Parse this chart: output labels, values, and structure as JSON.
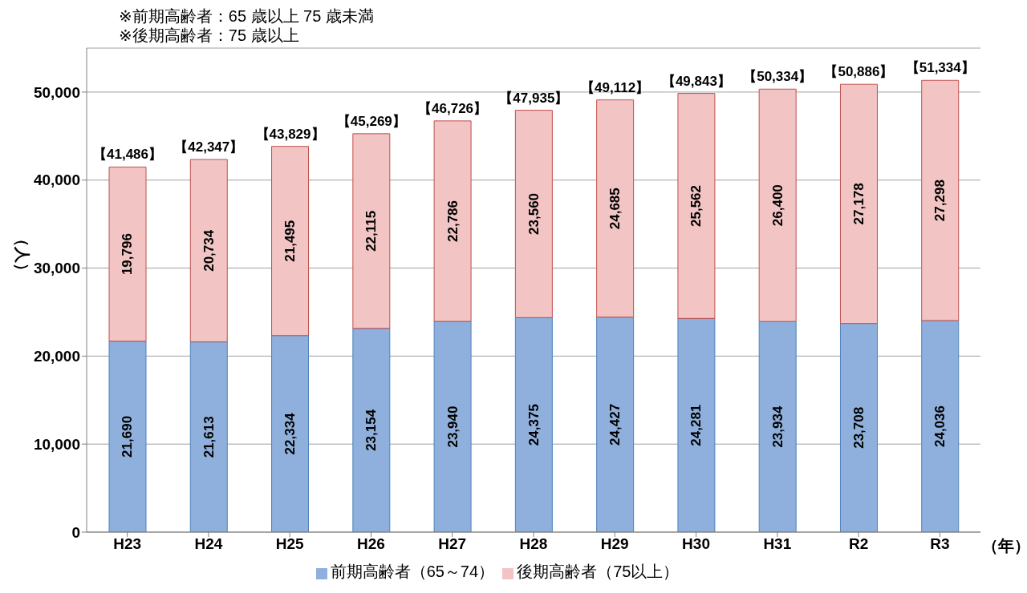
{
  "chart_data": {
    "type": "bar",
    "stacked": true,
    "ylabel": "（人）",
    "xlabel": "（年）",
    "annotations": [
      "※前期高齢者：65 歳以上 75 歳未満",
      "※後期高齢者：75 歳以上"
    ],
    "categories": [
      "H23",
      "H24",
      "H25",
      "H26",
      "H27",
      "H28",
      "H29",
      "H30",
      "H31",
      "R2",
      "R3"
    ],
    "series": [
      {
        "name": "前期高齢者（65～74）",
        "color": "#8fb0dc",
        "values": [
          21690,
          21613,
          22334,
          23154,
          23940,
          24375,
          24427,
          24281,
          23934,
          23708,
          24036
        ],
        "value_labels": [
          "21,690",
          "21,613",
          "22,334",
          "23,154",
          "23,940",
          "24,375",
          "24,427",
          "24,281",
          "23,934",
          "23,708",
          "24,036"
        ]
      },
      {
        "name": "後期高齢者（75以上）",
        "color": "#f2c4c4",
        "values": [
          19796,
          20734,
          21495,
          22115,
          22786,
          23560,
          24685,
          25562,
          26400,
          27178,
          27298
        ],
        "value_labels": [
          "19,796",
          "20,734",
          "21,495",
          "22,115",
          "22,786",
          "23,560",
          "24,685",
          "25,562",
          "26,400",
          "27,178",
          "27,298"
        ]
      }
    ],
    "totals": [
      "【41,486】",
      "【42,347】",
      "【43,829】",
      "【45,269】",
      "【46,726】",
      "【47,935】",
      "【49,112】",
      "【49,843】",
      "【50,334】",
      "【50,886】",
      "【51,334】"
    ],
    "ylim": [
      0,
      55000
    ],
    "yticks": [
      0,
      {
        "value": 10000,
        "label": "10,000"
      },
      {
        "value": 20000,
        "label": "20,000"
      },
      {
        "value": 30000,
        "label": "30,000"
      },
      {
        "value": 40000,
        "label": "40,000"
      },
      {
        "value": 50000,
        "label": "50,000"
      }
    ],
    "grid": "y",
    "legend": "bottom"
  }
}
